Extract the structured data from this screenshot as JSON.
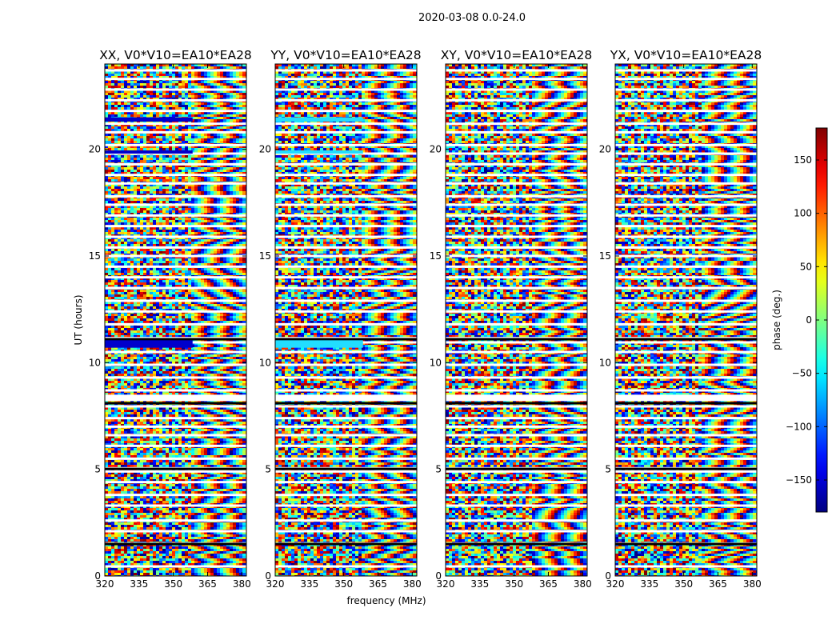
{
  "figure_title": "2020-03-08 0.0-24.0",
  "chart_data": {
    "type": "heatmap",
    "title": "2020-03-08 0.0-24.0",
    "panels": [
      {
        "title": "XX, V0*V10=EA10*EA28",
        "pol": "XX"
      },
      {
        "title": "YY, V0*V10=EA10*EA28",
        "pol": "YY"
      },
      {
        "title": "XY, V0*V10=EA10*EA28",
        "pol": "XY"
      },
      {
        "title": "YX, V0*V10=EA10*EA28",
        "pol": "YX"
      }
    ],
    "xlabel": "frequency (MHz)",
    "ylabel": "UT (hours)",
    "xlim": [
      320,
      382
    ],
    "ylim": [
      0,
      24
    ],
    "xticks": [
      "320",
      "335",
      "350",
      "365",
      "380"
    ],
    "xtick_values": [
      320,
      335,
      350,
      365,
      380
    ],
    "yticks": [
      "0",
      "5",
      "10",
      "15",
      "20"
    ],
    "ytick_values": [
      0,
      5,
      10,
      15,
      20
    ],
    "colorbar": {
      "label": "phase (deg.)",
      "range": [
        -180,
        180
      ],
      "ticks": [
        "150",
        "100",
        "50",
        "0",
        "−50",
        "−100",
        "−150"
      ],
      "tick_values": [
        150,
        100,
        50,
        0,
        -50,
        -100,
        -150
      ],
      "colormap": "jet"
    },
    "flagged_ut_rows": [
      0.45,
      1.52,
      2.1,
      2.6,
      3.3,
      3.8,
      4.4,
      4.9,
      5.05,
      5.5,
      6.1,
      6.6,
      7.0,
      7.4,
      7.95,
      8.35,
      8.7,
      9.3,
      9.9,
      10.5,
      10.95,
      11.15,
      11.8,
      12.4,
      12.9,
      13.5,
      14.0,
      14.5,
      15.0,
      15.4,
      15.9,
      16.4,
      16.9,
      17.4,
      17.8,
      18.4,
      18.8,
      19.3,
      19.8,
      20.2,
      20.8,
      21.2,
      21.8,
      22.3,
      22.8,
      23.3,
      23.7
    ],
    "black_ut_rows": [
      1.5,
      5.02,
      8.1,
      11.1
    ]
  }
}
